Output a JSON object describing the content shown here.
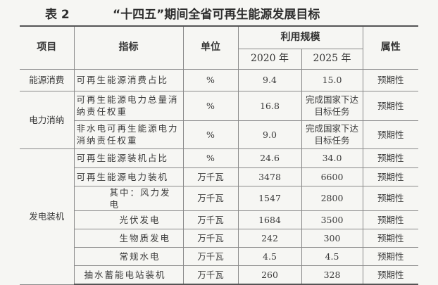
{
  "title": {
    "table_no": "表 2",
    "text": "“十四五”期间全省可再生能源发展目标"
  },
  "headers": {
    "category": "项目",
    "indicator": "指标",
    "unit": "单位",
    "scale": "利用规模",
    "y2020": "2020 年",
    "y2025": "2025 年",
    "attribute": "属性"
  },
  "groups": {
    "consumption": "能源消费",
    "absorption": "电力消纳",
    "capacity": "发电装机"
  },
  "rows": [
    {
      "indicator": "可再生能源消费占比",
      "unit": "%",
      "v2020": "9.4",
      "v2025": "15.0",
      "attribute": "预期性"
    },
    {
      "indicator": "可再生能源电力总量消纳责任权重",
      "unit": "%",
      "v2020": "16.8",
      "v2025": "完成国家下达目标任务",
      "attribute": "预期性"
    },
    {
      "indicator": "非水电可再生能源电力消纳责任权重",
      "unit": "%",
      "v2020": "9.0",
      "v2025": "完成国家下达目标任务",
      "attribute": "预期性"
    },
    {
      "indicator": "可再生能源装机占比",
      "unit": "%",
      "v2020": "24.6",
      "v2025": "34.0",
      "attribute": "预期性"
    },
    {
      "indicator": "可再生能源电力装机",
      "unit": "万千瓦",
      "v2020": "3478",
      "v2025": "6600",
      "attribute": "预期性"
    },
    {
      "indicator": "其中：风力发电",
      "unit": "万千瓦",
      "v2020": "1547",
      "v2025": "2800",
      "attribute": "预期性"
    },
    {
      "indicator": "光伏发电",
      "unit": "万千瓦",
      "v2020": "1684",
      "v2025": "3500",
      "attribute": "预期性"
    },
    {
      "indicator": "生物质发电",
      "unit": "万千瓦",
      "v2020": "242",
      "v2025": "300",
      "attribute": "预期性"
    },
    {
      "indicator": "常规水电",
      "unit": "万千瓦",
      "v2020": "4.5",
      "v2025": "4.5",
      "attribute": "预期性"
    },
    {
      "indicator": "抽水蓄能电站装机",
      "unit": "万千瓦",
      "v2020": "260",
      "v2025": "328",
      "attribute": "预期性"
    }
  ]
}
